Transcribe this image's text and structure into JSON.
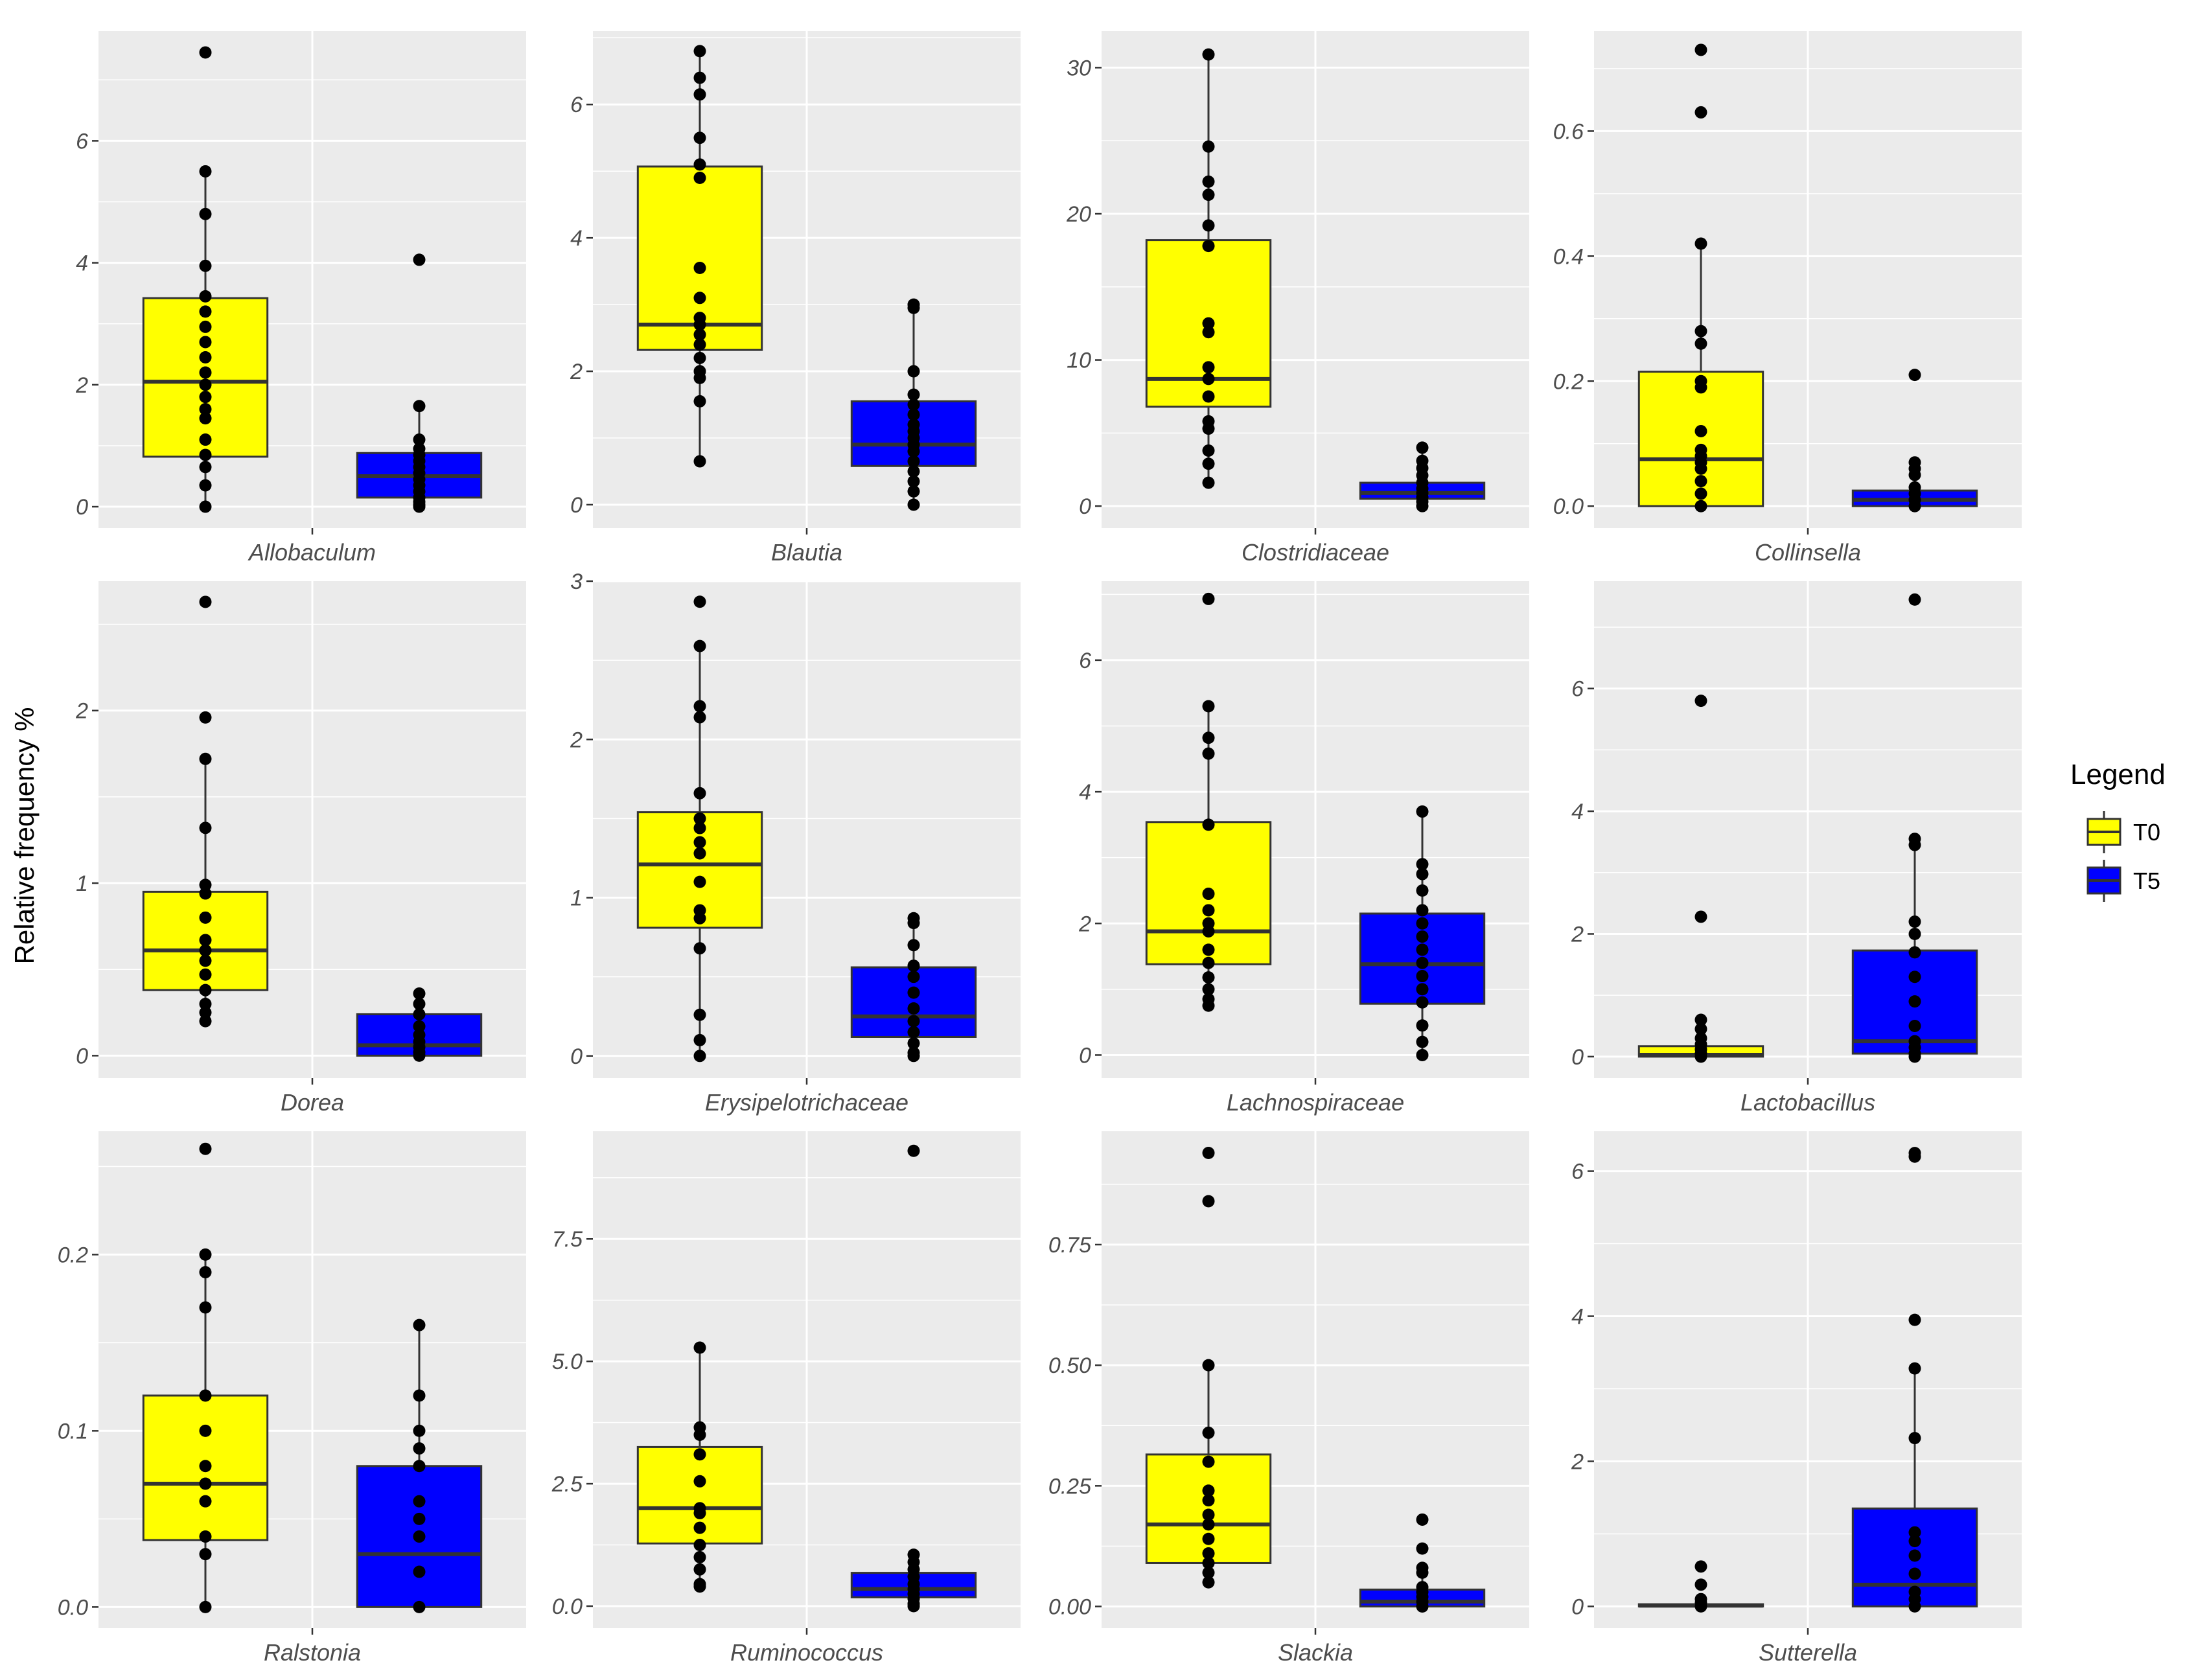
{
  "chart_data": {
    "type": "boxplot",
    "layout": "facet-grid 3x4, free y scales",
    "ylabel": "Relative frequency %",
    "legend": {
      "title": "Legend",
      "position": "right",
      "entries": [
        {
          "name": "T0",
          "color": "#ffff00"
        },
        {
          "name": "T5",
          "color": "#0000ff"
        }
      ]
    },
    "panels": [
      {
        "taxon": "Allobaculum",
        "ylim": [
          -0.35,
          7.8
        ],
        "ticks": [
          0,
          2,
          4,
          6
        ],
        "tick_labels": [
          "0",
          "2",
          "4",
          "6"
        ],
        "groups": [
          {
            "name": "T0",
            "q1": 0.82,
            "median": 2.05,
            "q3": 3.42,
            "whisker_low": 0.0,
            "whisker_high": 5.5,
            "points": [
              7.45,
              5.5,
              4.8,
              3.95,
              3.45,
              3.2,
              2.95,
              2.7,
              2.45,
              2.2,
              2.0,
              1.8,
              1.6,
              1.45,
              1.1,
              0.85,
              0.65,
              0.35,
              0.0
            ]
          },
          {
            "name": "T5",
            "q1": 0.15,
            "median": 0.5,
            "q3": 0.88,
            "whisker_low": 0.0,
            "whisker_high": 1.65,
            "points": [
              4.05,
              1.65,
              1.1,
              0.95,
              0.85,
              0.75,
              0.65,
              0.55,
              0.45,
              0.35,
              0.25,
              0.15,
              0.08,
              0.03,
              0.0
            ]
          }
        ]
      },
      {
        "taxon": "Blautia",
        "ylim": [
          -0.35,
          7.1
        ],
        "ticks": [
          0,
          2,
          4,
          6
        ],
        "tick_labels": [
          "0",
          "2",
          "4",
          "6"
        ],
        "groups": [
          {
            "name": "T0",
            "q1": 2.32,
            "median": 2.7,
            "q3": 5.07,
            "whisker_low": 0.65,
            "whisker_high": 6.8,
            "points": [
              6.8,
              6.4,
              6.15,
              5.5,
              5.1,
              4.9,
              3.55,
              3.1,
              2.8,
              2.7,
              2.55,
              2.4,
              2.2,
              2.0,
              1.9,
              1.55,
              0.65
            ]
          },
          {
            "name": "T5",
            "q1": 0.58,
            "median": 0.9,
            "q3": 1.55,
            "whisker_low": 0.0,
            "whisker_high": 3.0,
            "points": [
              3.0,
              2.95,
              2.0,
              1.65,
              1.5,
              1.35,
              1.2,
              1.1,
              1.0,
              0.9,
              0.8,
              0.65,
              0.5,
              0.35,
              0.2,
              0.0
            ]
          }
        ]
      },
      {
        "taxon": "Clostridiaceae",
        "ylim": [
          -1.5,
          32.5
        ],
        "ticks": [
          0,
          10,
          20,
          30
        ],
        "tick_labels": [
          "0",
          "10",
          "20",
          "30"
        ],
        "groups": [
          {
            "name": "T0",
            "q1": 6.8,
            "median": 8.7,
            "q3": 18.2,
            "whisker_low": 1.6,
            "whisker_high": 30.9,
            "points": [
              30.9,
              24.6,
              22.2,
              21.3,
              19.2,
              17.8,
              12.5,
              11.9,
              9.5,
              8.7,
              7.5,
              5.8,
              5.3,
              3.8,
              2.9,
              1.6
            ]
          },
          {
            "name": "T5",
            "q1": 0.5,
            "median": 0.9,
            "q3": 1.6,
            "whisker_low": 0.0,
            "whisker_high": 4.0,
            "points": [
              4.0,
              3.1,
              2.6,
              2.1,
              1.6,
              1.2,
              0.9,
              0.6,
              0.3,
              0.0
            ]
          }
        ]
      },
      {
        "taxon": "Collinsella",
        "ylim": [
          -0.035,
          0.76
        ],
        "ticks": [
          0,
          0.2,
          0.4,
          0.6
        ],
        "tick_labels": [
          "0.0",
          "0.2",
          "0.4",
          "0.6"
        ],
        "groups": [
          {
            "name": "T0",
            "q1": 0.0,
            "median": 0.075,
            "q3": 0.215,
            "whisker_low": 0.0,
            "whisker_high": 0.42,
            "points": [
              0.73,
              0.63,
              0.42,
              0.28,
              0.26,
              0.2,
              0.19,
              0.12,
              0.09,
              0.08,
              0.07,
              0.06,
              0.04,
              0.02,
              0.0
            ]
          },
          {
            "name": "T5",
            "q1": 0.0,
            "median": 0.01,
            "q3": 0.025,
            "whisker_low": 0.0,
            "whisker_high": 0.06,
            "points": [
              0.21,
              0.07,
              0.06,
              0.05,
              0.03,
              0.02,
              0.01,
              0.0
            ]
          }
        ]
      },
      {
        "taxon": "Dorea",
        "ylim": [
          -0.13,
          2.75
        ],
        "ticks": [
          0,
          1,
          2
        ],
        "tick_labels": [
          "0",
          "1",
          "2"
        ],
        "groups": [
          {
            "name": "T0",
            "q1": 0.38,
            "median": 0.61,
            "q3": 0.95,
            "whisker_low": 0.2,
            "whisker_high": 1.72,
            "points": [
              2.63,
              1.96,
              1.72,
              1.32,
              0.99,
              0.94,
              0.8,
              0.67,
              0.61,
              0.55,
              0.47,
              0.38,
              0.3,
              0.25,
              0.2
            ]
          },
          {
            "name": "T5",
            "q1": 0.0,
            "median": 0.06,
            "q3": 0.24,
            "whisker_low": 0.0,
            "whisker_high": 0.36,
            "points": [
              0.36,
              0.3,
              0.24,
              0.17,
              0.12,
              0.08,
              0.05,
              0.02,
              0.0
            ]
          }
        ]
      },
      {
        "taxon": "Erysipelotrichaceae",
        "ylim": [
          -0.14,
          3.0
        ],
        "ticks": [
          0,
          1,
          2,
          3
        ],
        "tick_labels": [
          "0",
          "1",
          "2",
          "3"
        ],
        "groups": [
          {
            "name": "T0",
            "q1": 0.81,
            "median": 1.21,
            "q3": 1.54,
            "whisker_low": 0.0,
            "whisker_high": 2.59,
            "points": [
              2.87,
              2.59,
              2.21,
              2.14,
              1.66,
              1.5,
              1.44,
              1.35,
              1.28,
              1.1,
              0.92,
              0.87,
              0.68,
              0.26,
              0.1,
              0.0
            ]
          },
          {
            "name": "T5",
            "q1": 0.12,
            "median": 0.25,
            "q3": 0.56,
            "whisker_low": 0.0,
            "whisker_high": 0.87,
            "points": [
              0.87,
              0.84,
              0.7,
              0.57,
              0.5,
              0.4,
              0.3,
              0.22,
              0.15,
              0.08,
              0.02,
              0.0
            ]
          }
        ]
      },
      {
        "taxon": "Lachnospiraceae",
        "ylim": [
          -0.35,
          7.2
        ],
        "ticks": [
          0,
          2,
          4,
          6
        ],
        "tick_labels": [
          "0",
          "2",
          "4",
          "6"
        ],
        "groups": [
          {
            "name": "T0",
            "q1": 1.38,
            "median": 1.88,
            "q3": 3.54,
            "whisker_low": 0.75,
            "whisker_high": 5.3,
            "points": [
              6.93,
              5.3,
              4.82,
              4.58,
              3.5,
              2.45,
              2.2,
              2.0,
              1.88,
              1.6,
              1.4,
              1.18,
              1.0,
              0.85,
              0.75
            ]
          },
          {
            "name": "T5",
            "q1": 0.78,
            "median": 1.38,
            "q3": 2.15,
            "whisker_low": 0.0,
            "whisker_high": 3.7,
            "points": [
              3.7,
              2.9,
              2.75,
              2.5,
              2.2,
              2.0,
              1.8,
              1.6,
              1.4,
              1.2,
              1.0,
              0.8,
              0.45,
              0.2,
              0.0
            ]
          }
        ]
      },
      {
        "taxon": "Lactobacillus",
        "ylim": [
          -0.35,
          7.75
        ],
        "ticks": [
          0,
          2,
          4,
          6
        ],
        "tick_labels": [
          "0",
          "2",
          "4",
          "6"
        ],
        "groups": [
          {
            "name": "T0",
            "q1": 0.0,
            "median": 0.03,
            "q3": 0.17,
            "whisker_low": 0.0,
            "whisker_high": 0.3,
            "points": [
              5.8,
              2.28,
              0.6,
              0.45,
              0.3,
              0.2,
              0.12,
              0.05,
              0.0
            ]
          },
          {
            "name": "T5",
            "q1": 0.05,
            "median": 0.25,
            "q3": 1.73,
            "whisker_low": 0.0,
            "whisker_high": 3.5,
            "points": [
              7.45,
              3.55,
              3.45,
              2.2,
              2.0,
              1.7,
              1.3,
              0.9,
              0.5,
              0.25,
              0.15,
              0.05,
              0.0
            ]
          }
        ]
      },
      {
        "taxon": "Ralstonia",
        "ylim": [
          -0.012,
          0.27
        ],
        "ticks": [
          0,
          0.1,
          0.2
        ],
        "tick_labels": [
          "0.0",
          "0.1",
          "0.2"
        ],
        "groups": [
          {
            "name": "T0",
            "q1": 0.038,
            "median": 0.07,
            "q3": 0.12,
            "whisker_low": 0.0,
            "whisker_high": 0.2,
            "points": [
              0.26,
              0.2,
              0.19,
              0.17,
              0.12,
              0.1,
              0.08,
              0.07,
              0.06,
              0.04,
              0.03,
              0.0
            ]
          },
          {
            "name": "T5",
            "q1": 0.0,
            "median": 0.03,
            "q3": 0.08,
            "whisker_low": 0.0,
            "whisker_high": 0.16,
            "points": [
              0.16,
              0.12,
              0.1,
              0.09,
              0.08,
              0.06,
              0.05,
              0.04,
              0.02,
              0.0
            ]
          }
        ]
      },
      {
        "taxon": "Ruminococcus",
        "ylim": [
          -0.45,
          9.7
        ],
        "ticks": [
          0,
          2.5,
          5,
          7.5
        ],
        "tick_labels": [
          "0.0",
          "2.5",
          "5.0",
          "7.5"
        ],
        "groups": [
          {
            "name": "T0",
            "q1": 1.28,
            "median": 2.0,
            "q3": 3.25,
            "whisker_low": 0.4,
            "whisker_high": 5.28,
            "points": [
              5.28,
              3.65,
              3.5,
              3.1,
              2.55,
              2.0,
              1.9,
              1.6,
              1.25,
              1.0,
              0.75,
              0.45,
              0.4
            ]
          },
          {
            "name": "T5",
            "q1": 0.18,
            "median": 0.35,
            "q3": 0.68,
            "whisker_low": 0.0,
            "whisker_high": 1.05,
            "points": [
              9.3,
              1.05,
              0.9,
              0.75,
              0.6,
              0.45,
              0.35,
              0.25,
              0.15,
              0.05,
              0.0
            ]
          }
        ]
      },
      {
        "taxon": "Slackia",
        "ylim": [
          -0.045,
          0.985
        ],
        "ticks": [
          0,
          0.25,
          0.5,
          0.75
        ],
        "tick_labels": [
          "0.00",
          "0.25",
          "0.50",
          "0.75"
        ],
        "groups": [
          {
            "name": "T0",
            "q1": 0.09,
            "median": 0.17,
            "q3": 0.315,
            "whisker_low": 0.05,
            "whisker_high": 0.5,
            "points": [
              0.94,
              0.84,
              0.5,
              0.36,
              0.3,
              0.24,
              0.22,
              0.19,
              0.17,
              0.14,
              0.11,
              0.09,
              0.07,
              0.05
            ]
          },
          {
            "name": "T5",
            "q1": 0.0,
            "median": 0.01,
            "q3": 0.035,
            "whisker_low": 0.0,
            "whisker_high": 0.08,
            "points": [
              0.18,
              0.12,
              0.08,
              0.07,
              0.04,
              0.03,
              0.02,
              0.01,
              0.0
            ]
          }
        ]
      },
      {
        "taxon": "Sutterella",
        "ylim": [
          -0.3,
          6.55
        ],
        "ticks": [
          0,
          2,
          4,
          6
        ],
        "tick_labels": [
          "0",
          "2",
          "4",
          "6"
        ],
        "groups": [
          {
            "name": "T0",
            "q1": 0.0,
            "median": 0.01,
            "q3": 0.03,
            "whisker_low": 0.0,
            "whisker_high": 0.06,
            "points": [
              0.55,
              0.3,
              0.1,
              0.05,
              0.0
            ]
          },
          {
            "name": "T5",
            "q1": 0.0,
            "median": 0.3,
            "q3": 1.35,
            "whisker_low": 0.0,
            "whisker_high": 3.28,
            "points": [
              6.25,
              6.2,
              3.95,
              3.28,
              2.32,
              1.02,
              0.9,
              0.7,
              0.45,
              0.2,
              0.1,
              0.0
            ]
          }
        ]
      }
    ]
  }
}
